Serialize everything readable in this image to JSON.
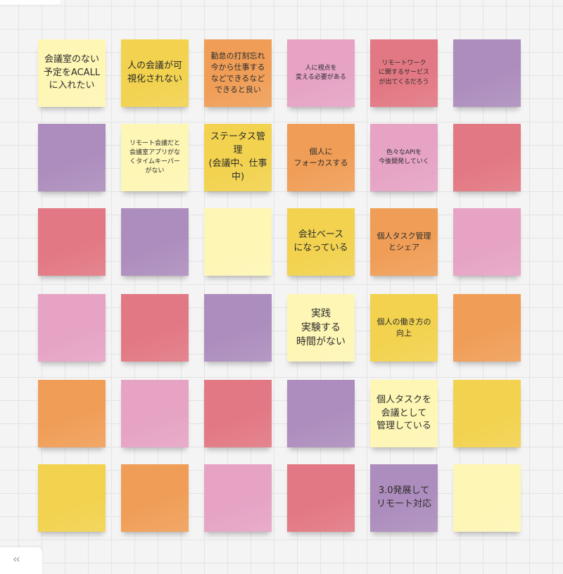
{
  "palette": {
    "lightyellow": "#fef6b4",
    "yellow": "#f2d24e",
    "orange": "#f09e57",
    "pink": "#e6a3c4",
    "red": "#e27883",
    "purple": "#ad8dbd"
  },
  "notes": [
    {
      "text": "会議室のない\n予定をACALL\nに入れたい",
      "color": "lightyellow",
      "size": "md"
    },
    {
      "text": "人の会議が可\n視化されない",
      "color": "yellow",
      "size": "md"
    },
    {
      "text": "勤怠の打刻忘れ\n今から仕事する\nなどできるなど\nできると良い",
      "color": "orange",
      "size": "sm"
    },
    {
      "text": "人に視点を\n変える必要がある",
      "color": "pink",
      "size": "xs"
    },
    {
      "text": "リモートワーク\nに関するサービス\nが出てくるだろう",
      "color": "red",
      "size": "xs"
    },
    {
      "text": "",
      "color": "purple",
      "size": "md"
    },
    {
      "text": "",
      "color": "purple",
      "size": "md"
    },
    {
      "text": "リモート会議だと\n会議室アプリがな\nくタイムキーパー\nがない",
      "color": "lightyellow",
      "size": "xs"
    },
    {
      "text": "ステータス管\n理\n(会議中、仕事\n中)",
      "color": "yellow",
      "size": "md"
    },
    {
      "text": "個人に\nフォーカスする",
      "color": "orange",
      "size": "sm"
    },
    {
      "text": "色々なAPIを\n今後開発していく",
      "color": "pink",
      "size": "xs"
    },
    {
      "text": "",
      "color": "red",
      "size": "md"
    },
    {
      "text": "",
      "color": "red",
      "size": "md"
    },
    {
      "text": "",
      "color": "purple",
      "size": "md"
    },
    {
      "text": "",
      "color": "lightyellow",
      "size": "md"
    },
    {
      "text": "会社ベース\nになっている",
      "color": "yellow",
      "size": "md"
    },
    {
      "text": "個人タスク管理\nとシェア",
      "color": "orange",
      "size": "sm"
    },
    {
      "text": "",
      "color": "pink",
      "size": "md"
    },
    {
      "text": "",
      "color": "pink",
      "size": "md"
    },
    {
      "text": "",
      "color": "red",
      "size": "md"
    },
    {
      "text": "",
      "color": "purple",
      "size": "md"
    },
    {
      "text": "実践\n実験する\n時間がない",
      "color": "lightyellow",
      "size": "lg"
    },
    {
      "text": "個人の働き方の\n向上",
      "color": "yellow",
      "size": "sm"
    },
    {
      "text": "",
      "color": "orange",
      "size": "md"
    },
    {
      "text": "",
      "color": "orange",
      "size": "md"
    },
    {
      "text": "",
      "color": "pink",
      "size": "md"
    },
    {
      "text": "",
      "color": "red",
      "size": "md"
    },
    {
      "text": "",
      "color": "purple",
      "size": "md"
    },
    {
      "text": "個人タスクを\n会議として\n管理している",
      "color": "lightyellow",
      "size": "md"
    },
    {
      "text": "",
      "color": "yellow",
      "size": "md"
    },
    {
      "text": "",
      "color": "yellow",
      "size": "md"
    },
    {
      "text": "",
      "color": "orange",
      "size": "md"
    },
    {
      "text": "",
      "color": "pink",
      "size": "md"
    },
    {
      "text": "",
      "color": "red",
      "size": "md"
    },
    {
      "text": "3.0発展して\nリモート対応",
      "color": "purple",
      "size": "md"
    },
    {
      "text": "",
      "color": "lightyellow",
      "size": "md"
    }
  ],
  "sidebar_toggle": {
    "icon": "double-chevron-left-icon",
    "glyph": "‹‹"
  }
}
